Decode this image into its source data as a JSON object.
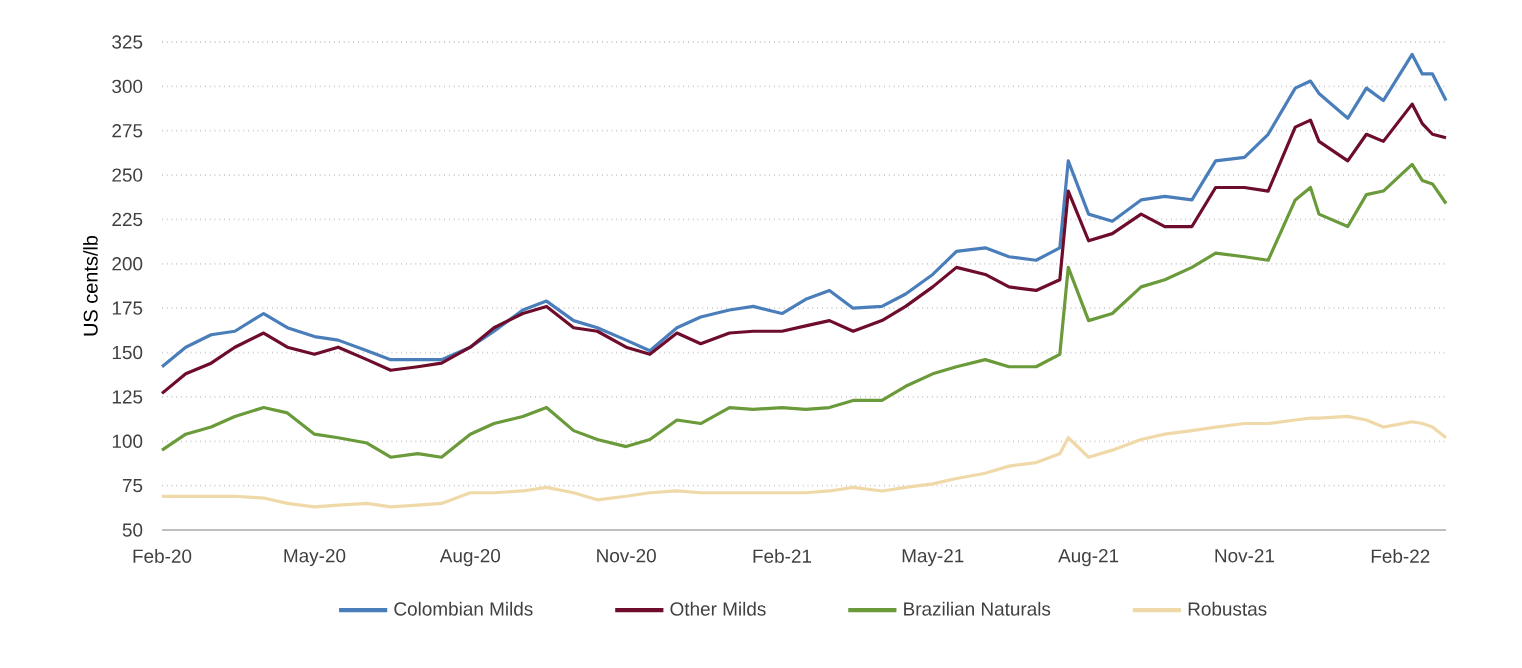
{
  "chart_data": {
    "type": "line",
    "ylabel": "US cents/lb",
    "ylim": [
      50,
      325
    ],
    "yticks": [
      50,
      75,
      100,
      125,
      150,
      175,
      200,
      225,
      250,
      275,
      300,
      325
    ],
    "xlim": [
      "2020-02-01",
      "2022-02-28"
    ],
    "xticks": [
      {
        "value": "2020-02-01",
        "label": "Feb-20"
      },
      {
        "value": "2020-05-01",
        "label": "May-20"
      },
      {
        "value": "2020-08-01",
        "label": "Aug-20"
      },
      {
        "value": "2020-11-01",
        "label": "Nov-20"
      },
      {
        "value": "2021-02-01",
        "label": "Feb-21"
      },
      {
        "value": "2021-05-01",
        "label": "May-21"
      },
      {
        "value": "2021-08-01",
        "label": "Aug-21"
      },
      {
        "value": "2021-11-01",
        "label": "Nov-21"
      },
      {
        "value": "2022-02-01",
        "label": "Feb-22"
      }
    ],
    "grid": "y",
    "legend": "bottom",
    "marker": "none",
    "line_style": "solid",
    "x": [
      "2020-02-01",
      "2020-02-15",
      "2020-03-01",
      "2020-03-15",
      "2020-04-01",
      "2020-04-15",
      "2020-05-01",
      "2020-05-15",
      "2020-06-01",
      "2020-06-15",
      "2020-07-01",
      "2020-07-15",
      "2020-08-01",
      "2020-08-15",
      "2020-09-01",
      "2020-09-15",
      "2020-10-01",
      "2020-10-15",
      "2020-11-01",
      "2020-11-15",
      "2020-12-01",
      "2020-12-15",
      "2021-01-01",
      "2021-01-15",
      "2021-02-01",
      "2021-02-15",
      "2021-03-01",
      "2021-03-15",
      "2021-04-01",
      "2021-04-15",
      "2021-05-01",
      "2021-05-15",
      "2021-06-01",
      "2021-06-15",
      "2021-07-01",
      "2021-07-15",
      "2021-07-20",
      "2021-08-01",
      "2021-08-15",
      "2021-09-01",
      "2021-09-15",
      "2021-10-01",
      "2021-10-15",
      "2021-11-01",
      "2021-11-15",
      "2021-12-01",
      "2021-12-10",
      "2021-12-15",
      "2022-01-01",
      "2022-01-12",
      "2022-01-22",
      "2022-02-08",
      "2022-02-14",
      "2022-02-20",
      "2022-02-28"
    ],
    "series": [
      {
        "name": "Colombian Milds",
        "color": "#4a7ebb",
        "values": [
          142,
          153,
          160,
          162,
          172,
          164,
          159,
          157,
          151,
          146,
          146,
          146,
          153,
          162,
          174,
          179,
          168,
          164,
          157,
          151,
          164,
          170,
          174,
          176,
          172,
          180,
          185,
          175,
          176,
          183,
          194,
          207,
          209,
          204,
          202,
          209,
          258,
          228,
          224,
          236,
          238,
          236,
          258,
          260,
          273,
          299,
          303,
          296,
          282,
          299,
          292,
          318,
          307,
          307,
          292
        ]
      },
      {
        "name": "Other Milds",
        "color": "#6e0c2b",
        "values": [
          127,
          138,
          144,
          153,
          161,
          153,
          149,
          153,
          146,
          140,
          142,
          144,
          153,
          164,
          172,
          176,
          164,
          162,
          153,
          149,
          161,
          155,
          161,
          162,
          162,
          165,
          168,
          162,
          168,
          176,
          187,
          198,
          194,
          187,
          185,
          191,
          241,
          213,
          217,
          228,
          221,
          221,
          243,
          243,
          241,
          277,
          281,
          269,
          258,
          273,
          269,
          290,
          279,
          273,
          271
        ]
      },
      {
        "name": "Brazilian Naturals",
        "color": "#6a9a3a",
        "values": [
          95,
          104,
          108,
          114,
          119,
          116,
          104,
          102,
          99,
          91,
          93,
          91,
          104,
          110,
          114,
          119,
          106,
          101,
          97,
          101,
          112,
          110,
          119,
          118,
          119,
          118,
          119,
          123,
          123,
          131,
          138,
          142,
          146,
          142,
          142,
          149,
          198,
          168,
          172,
          187,
          191,
          198,
          206,
          204,
          202,
          236,
          243,
          228,
          221,
          239,
          241,
          256,
          247,
          245,
          234
        ]
      },
      {
        "name": "Robustas",
        "color": "#f0d9a8",
        "values": [
          69,
          69,
          69,
          69,
          68,
          65,
          63,
          64,
          65,
          63,
          64,
          65,
          71,
          71,
          72,
          74,
          71,
          67,
          69,
          71,
          72,
          71,
          71,
          71,
          71,
          71,
          72,
          74,
          72,
          74,
          76,
          79,
          82,
          86,
          88,
          93,
          102,
          91,
          95,
          101,
          104,
          106,
          108,
          110,
          110,
          112,
          113,
          113,
          114,
          112,
          108,
          111,
          110,
          108,
          102
        ]
      }
    ]
  }
}
